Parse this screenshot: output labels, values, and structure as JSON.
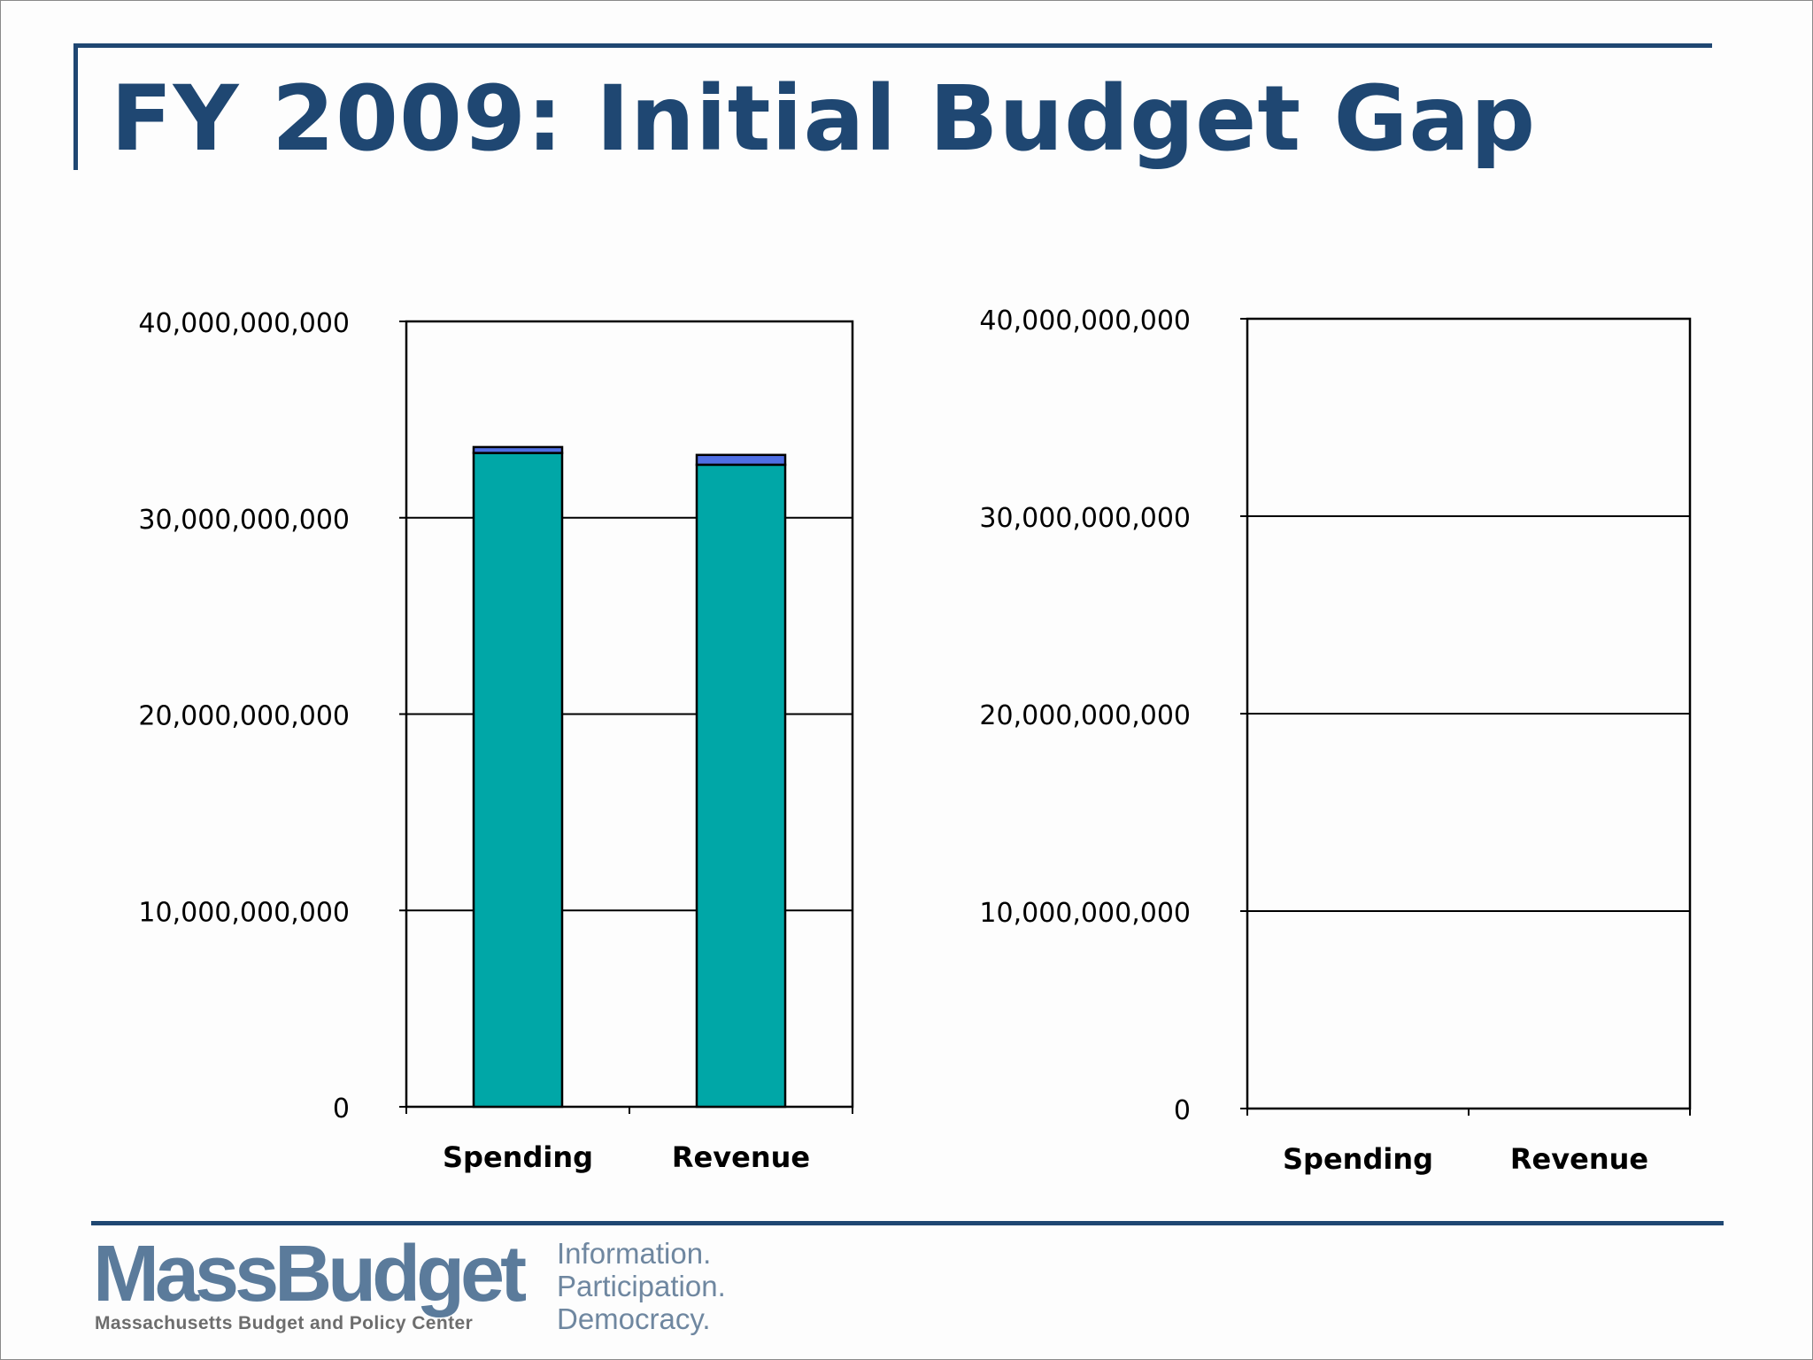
{
  "slide": {
    "title": "FY 2009: Initial Budget Gap"
  },
  "chart_data": [
    {
      "type": "bar",
      "stacked": true,
      "title": "",
      "xlabel": "",
      "ylabel": "",
      "categories": [
        "Spending",
        "Revenue"
      ],
      "ylim": [
        0,
        40000000000
      ],
      "yticks": [
        "0",
        "10,000,000,000",
        "20,000,000,000",
        "30,000,000,000",
        "40,000,000,000"
      ],
      "grid": true,
      "series": [
        {
          "values": [
            33300000000,
            32700000000
          ],
          "color": "#00a7a7"
        },
        {
          "values": [
            300000000,
            500000000
          ],
          "color": "#4f6fe3"
        }
      ]
    },
    {
      "type": "bar",
      "stacked": true,
      "title": "",
      "xlabel": "",
      "ylabel": "",
      "categories": [
        "Spending",
        "Revenue"
      ],
      "ylim": [
        0,
        40000000000
      ],
      "yticks": [
        "0",
        "10,000,000,000",
        "20,000,000,000",
        "30,000,000,000",
        "40,000,000,000"
      ],
      "grid": true,
      "series": []
    }
  ],
  "footer": {
    "logo_text": "MassBudget",
    "logo_subtitle": "Massachusetts Budget and Policy Center",
    "tagline": [
      "Information.",
      "Participation.",
      "Democracy."
    ]
  }
}
